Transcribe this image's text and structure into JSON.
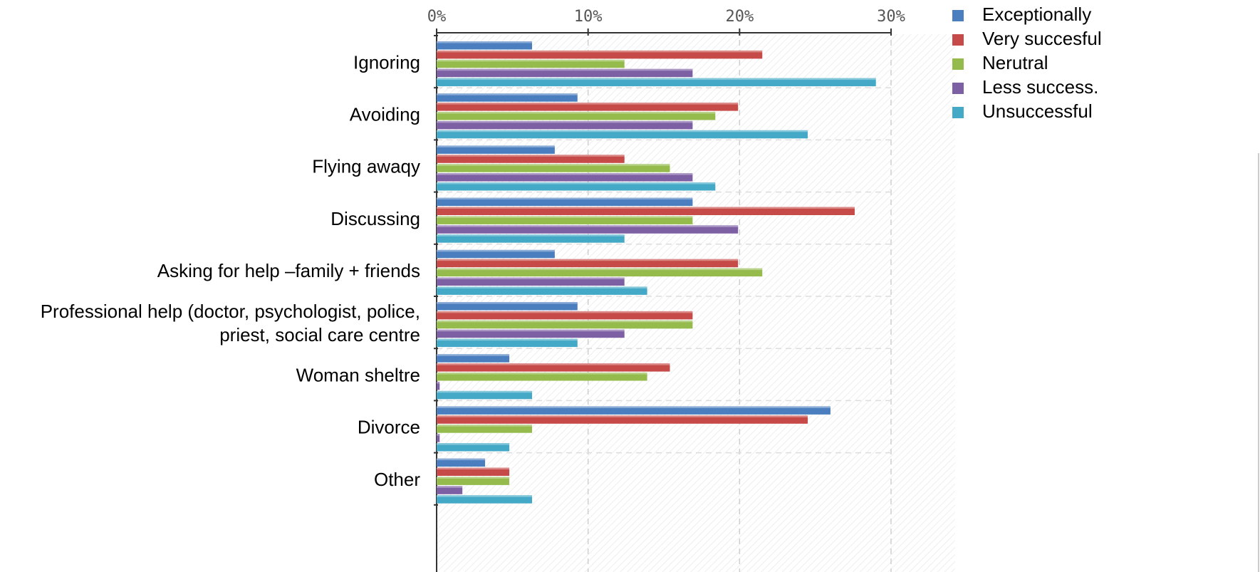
{
  "chart_data": {
    "type": "bar",
    "orientation": "horizontal",
    "xlim": [
      0,
      30
    ],
    "x_ticks": [
      {
        "value": 0,
        "label": "0%"
      },
      {
        "value": 10,
        "label": "10%"
      },
      {
        "value": 20,
        "label": "20%"
      },
      {
        "value": 30,
        "label": "30%"
      }
    ],
    "grid": true,
    "legend_position": "top-right",
    "categories": [
      {
        "lines": [
          "Ignoring"
        ]
      },
      {
        "lines": [
          "Avoiding"
        ]
      },
      {
        "lines": [
          "Flying awaqy"
        ]
      },
      {
        "lines": [
          "Discussing"
        ]
      },
      {
        "lines": [
          "Asking for help –family + friends"
        ]
      },
      {
        "lines": [
          "Professional help (doctor, psychologist, police,",
          "priest, social care centre"
        ]
      },
      {
        "lines": [
          "Woman  sheltre"
        ]
      },
      {
        "lines": [
          "Divorce"
        ]
      },
      {
        "lines": [
          "Other"
        ]
      }
    ],
    "series": [
      {
        "name": "Exceptionally",
        "color": "#4a7ebf",
        "values": [
          6.3,
          9.3,
          7.8,
          16.9,
          7.8,
          9.3,
          4.8,
          26.0,
          3.2
        ]
      },
      {
        "name": "Very succesful",
        "color": "#c64a47",
        "values": [
          21.5,
          19.9,
          12.4,
          27.6,
          19.9,
          16.9,
          15.4,
          24.5,
          4.8
        ]
      },
      {
        "name": "Nerutral",
        "color": "#94bb4c",
        "values": [
          12.4,
          18.4,
          15.4,
          16.9,
          21.5,
          16.9,
          13.9,
          6.3,
          4.8
        ]
      },
      {
        "name": "Less success.",
        "color": "#7d5fa4",
        "values": [
          16.9,
          16.9,
          16.9,
          19.9,
          12.4,
          12.4,
          0.2,
          0.2,
          1.7
        ]
      },
      {
        "name": "Unsuccessful",
        "color": "#43a9c6",
        "values": [
          29.0,
          24.5,
          18.4,
          12.4,
          13.9,
          9.3,
          6.3,
          4.8,
          6.3
        ]
      }
    ]
  }
}
